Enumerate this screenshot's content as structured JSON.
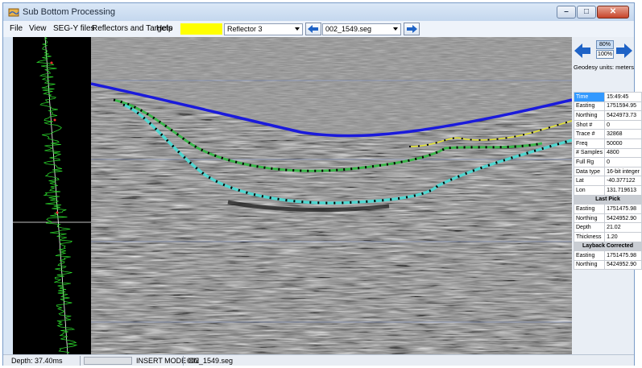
{
  "window": {
    "title": "Sub Bottom Processing"
  },
  "menu": {
    "file": "File",
    "view": "View",
    "segy": "SEG-Y files",
    "reflectors": "Reflectors and Targets",
    "help": "Help"
  },
  "toolbar": {
    "reflector_color": "#ffff00",
    "reflector_select": "Reflector 3",
    "file_select": "002_1549.seg"
  },
  "right_panel": {
    "zoom_80": "80%",
    "zoom_100": "100%",
    "geodesy": "Geodesy units: meters",
    "info": [
      {
        "k": "Time",
        "v": "15:49:45"
      },
      {
        "k": "Easting",
        "v": "1751594.95"
      },
      {
        "k": "Northing",
        "v": "5424973.73"
      },
      {
        "k": "Shot #",
        "v": "0"
      },
      {
        "k": "Trace #",
        "v": "32868"
      },
      {
        "k": "Freq",
        "v": "50000"
      },
      {
        "k": "# Samples",
        "v": "4800"
      },
      {
        "k": "Full Rg",
        "v": "0"
      },
      {
        "k": "Data type",
        "v": "16-bit integer"
      },
      {
        "k": "Lat",
        "v": "-40.377122"
      },
      {
        "k": "Lon",
        "v": "131.719613"
      }
    ],
    "last_pick_header": "Last Pick",
    "last_pick": [
      {
        "k": "Easting",
        "v": "1751475.98"
      },
      {
        "k": "Northing",
        "v": "5424952.90"
      },
      {
        "k": "Depth",
        "v": "21.02"
      },
      {
        "k": "Thickness",
        "v": "1.20"
      }
    ],
    "layback_header": "Layback Corrected",
    "layback": [
      {
        "k": "Easting",
        "v": "1751475.98"
      },
      {
        "k": "Northing",
        "v": "5424952.90"
      }
    ]
  },
  "status": {
    "depth": "Depth: 37.40ms",
    "progress": 0,
    "mode": "INSERT MODE ON",
    "file": "002_1549.seg"
  },
  "colors": {
    "seafloor": "#1a1adb",
    "reflector_green": "#3ab54a",
    "reflector_cyan": "#4fd6d0",
    "reflector_yellow": "#e6e632",
    "trace": "#2bd62b"
  }
}
